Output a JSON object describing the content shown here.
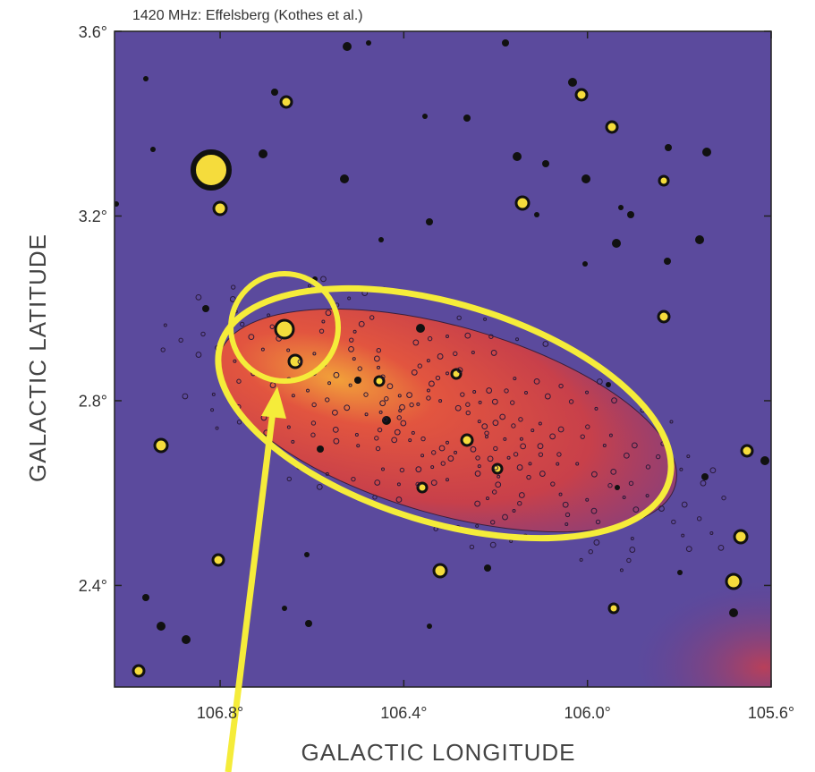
{
  "chart_data": {
    "type": "image",
    "title": "1420 MHz: Effelsberg (Kothes et al.)",
    "x_label": "GALACTIC LONGITUDE",
    "y_label": "GALACTIC LATITUDE",
    "xlim": [
      107.03,
      105.6
    ],
    "ylim": [
      2.18,
      3.6
    ],
    "xticks": [
      {
        "value": 106.8,
        "label": "106.8°"
      },
      {
        "value": 106.4,
        "label": "106.4°"
      },
      {
        "value": 106.0,
        "label": "106.0°"
      },
      {
        "value": 105.6,
        "label": "105.6°"
      }
    ],
    "yticks": [
      {
        "value": 3.6,
        "label": "3.6°"
      },
      {
        "value": 3.2,
        "label": "3.2°"
      },
      {
        "value": 2.8,
        "label": "2.8°"
      },
      {
        "value": 2.4,
        "label": "2.4°"
      }
    ]
  }
}
